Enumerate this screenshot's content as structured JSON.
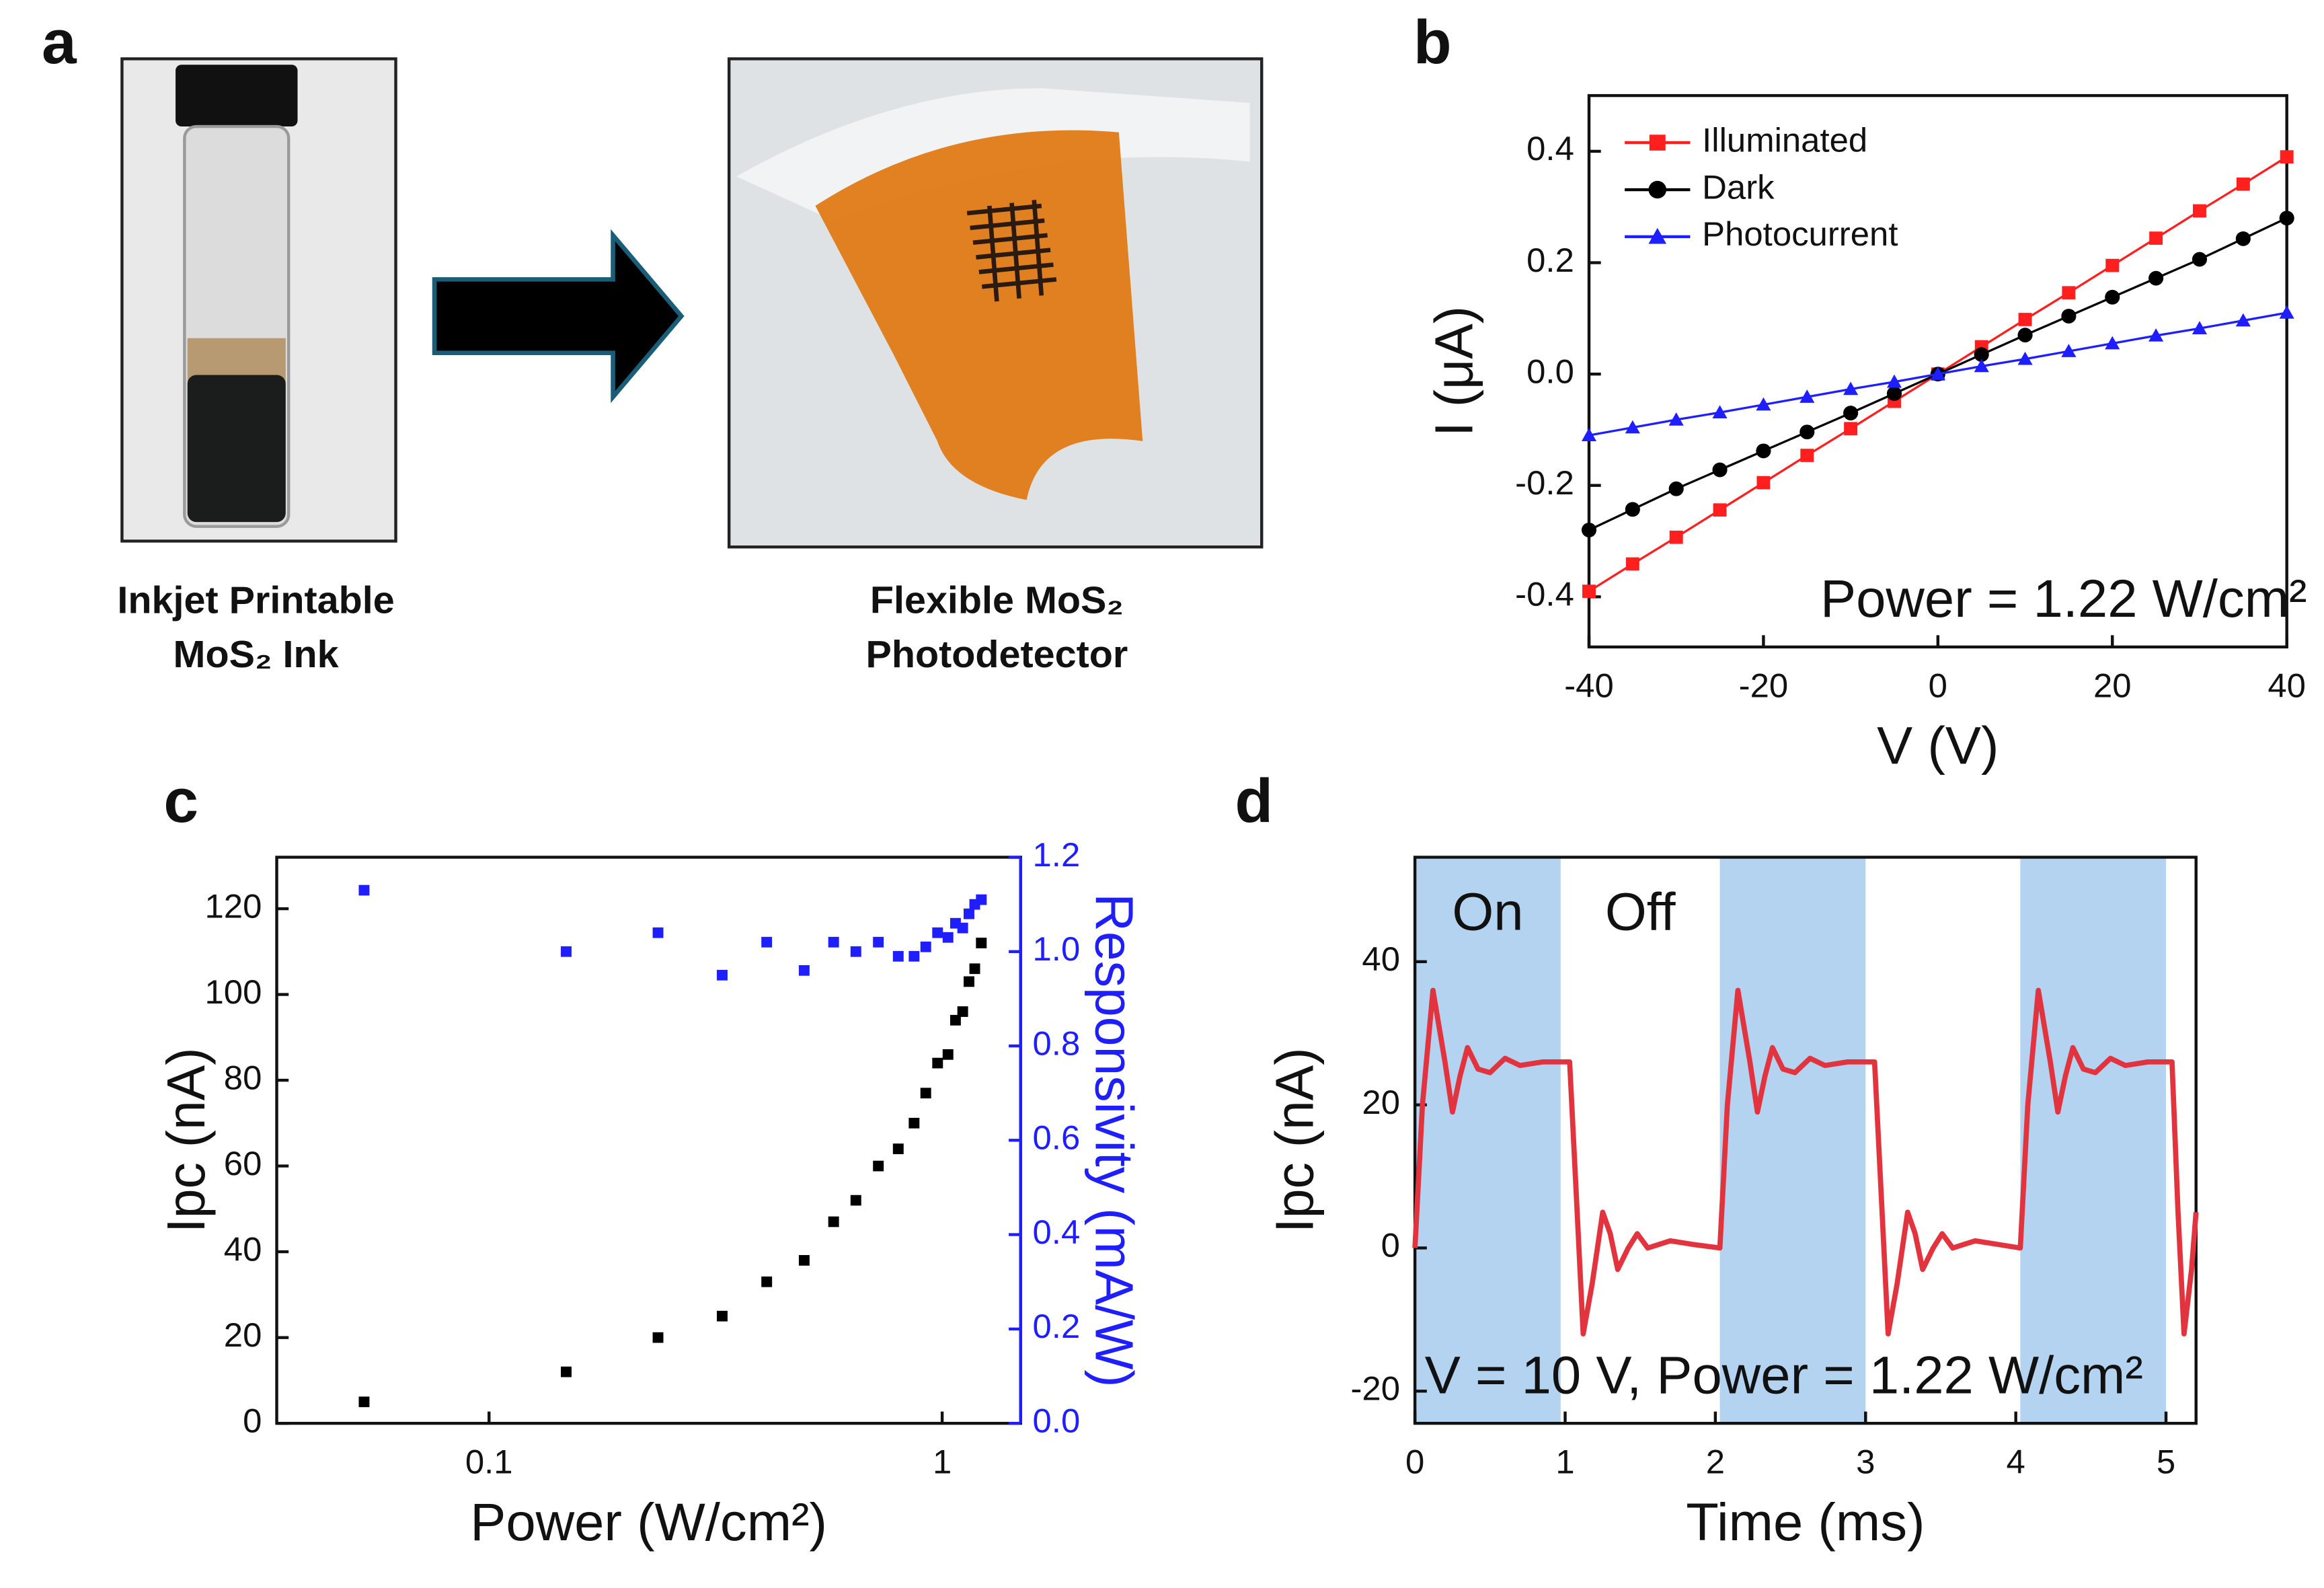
{
  "figure_a": {
    "panel_label": "a",
    "captions": [
      [
        "Inkjet Printable",
        "MoS₂ Ink"
      ],
      [
        "Flexible MoS₂",
        "Photodetector"
      ]
    ]
  },
  "chart_data": [
    {
      "type": "line",
      "panel_label": "b",
      "xlabel": "V (V)",
      "ylabel": "I (μA)",
      "annotation": "Power = 1.22 W/cm²",
      "legend": "upper left",
      "x": [
        -40,
        -35,
        -30,
        -25,
        -20,
        -15,
        -10,
        -5,
        0,
        5,
        10,
        15,
        20,
        25,
        30,
        35,
        40
      ],
      "xlim": [
        -40,
        40
      ],
      "ylim": [
        -0.49,
        0.5
      ],
      "xticks": [
        -40,
        -20,
        0,
        20,
        40
      ],
      "yticks": [
        -0.4,
        -0.2,
        {
          "value": 0,
          "label": "0.0"
        },
        0.2,
        0.4
      ],
      "series": [
        {
          "name": "Illuminated",
          "color": "#ff1f1f",
          "marker": "square",
          "values": [
            -0.39,
            -0.341,
            -0.293,
            -0.244,
            -0.195,
            -0.146,
            -0.098,
            -0.049,
            0,
            0.049,
            0.098,
            0.146,
            0.195,
            0.244,
            0.293,
            0.341,
            0.39
          ]
        },
        {
          "name": "Dark",
          "color": "#000000",
          "marker": "circle",
          "values": [
            -0.28,
            -0.243,
            -0.206,
            -0.172,
            -0.138,
            -0.104,
            -0.07,
            -0.035,
            0,
            0.035,
            0.07,
            0.104,
            0.138,
            0.172,
            0.206,
            0.243,
            0.28
          ]
        },
        {
          "name": "Photocurrent",
          "color": "#1e1eff",
          "marker": "triangle",
          "values": [
            -0.11,
            -0.096,
            -0.082,
            -0.069,
            -0.055,
            -0.041,
            -0.027,
            -0.014,
            0,
            0.014,
            0.027,
            0.041,
            0.055,
            0.069,
            0.082,
            0.096,
            0.11
          ]
        }
      ]
    },
    {
      "type": "scatter",
      "panel_label": "c",
      "xlabel": "Power (W/cm²)",
      "ylabel": "Ipc (nA)",
      "y2label": "Responsivity (mA/W)",
      "y2color": "#1e1eff",
      "xscale": "log",
      "xlim": [
        0.034,
        1.49
      ],
      "ylim": [
        0,
        132
      ],
      "y2lim": [
        0,
        1.2
      ],
      "xticks": [
        0.1,
        1
      ],
      "yticks": [
        0,
        20,
        40,
        60,
        80,
        100,
        120
      ],
      "y2ticks": [
        {
          "value": 0,
          "label": "0.0"
        },
        0.2,
        0.4,
        0.6,
        0.8,
        {
          "value": 1,
          "label": "1.0"
        },
        1.2
      ],
      "x": [
        0.053,
        0.148,
        0.236,
        0.327,
        0.41,
        0.496,
        0.576,
        0.645,
        0.723,
        0.8,
        0.867,
        0.92,
        0.977,
        1.03,
        1.07,
        1.11,
        1.146,
        1.18,
        1.22
      ],
      "series": [
        {
          "color": "#000000",
          "marker": "square",
          "values": [
            5,
            12,
            20,
            25,
            33,
            38,
            47,
            52,
            60,
            64,
            70,
            77,
            84,
            86,
            94,
            96,
            103,
            106,
            112
          ]
        },
        {
          "color": "#1e1eff",
          "marker": "square",
          "axis": "y2",
          "values": [
            1.13,
            1.0,
            1.04,
            0.95,
            1.02,
            0.96,
            1.02,
            1.0,
            1.02,
            0.99,
            0.99,
            1.01,
            1.04,
            1.03,
            1.06,
            1.05,
            1.08,
            1.1,
            1.11
          ]
        }
      ]
    },
    {
      "type": "line",
      "panel_label": "d",
      "xlabel": "Time (ms)",
      "ylabel": "Ipc (nA)",
      "annotation": "V = 10 V, Power = 1.22 W/cm²",
      "region_labels": [
        "On",
        "Off"
      ],
      "shade_color": "#b3d3f0",
      "shaded_regions": [
        [
          0,
          0.97
        ],
        [
          2.03,
          3.0
        ],
        [
          4.03,
          5.0
        ]
      ],
      "xlim": [
        0,
        5.2
      ],
      "ylim": [
        -24.5,
        54.6
      ],
      "xticks": [
        0,
        1,
        2,
        3,
        4,
        5
      ],
      "yticks": [
        -20,
        0,
        20,
        40
      ],
      "x": [
        0,
        0.05,
        0.12,
        0.2,
        0.25,
        0.3,
        0.35,
        0.42,
        0.5,
        0.6,
        0.7,
        0.85,
        1.03,
        1.08,
        1.12,
        1.18,
        1.25,
        1.3,
        1.35,
        1.42,
        1.48,
        1.55,
        1.7,
        1.85,
        2.03,
        2.08,
        2.15,
        2.23,
        2.28,
        2.33,
        2.38,
        2.45,
        2.53,
        2.63,
        2.73,
        2.88,
        3.06,
        3.11,
        3.15,
        3.21,
        3.28,
        3.33,
        3.38,
        3.45,
        3.51,
        3.58,
        3.73,
        3.88,
        4.03,
        4.08,
        4.15,
        4.23,
        4.28,
        4.33,
        4.38,
        4.45,
        4.53,
        4.63,
        4.73,
        4.88,
        5.04,
        5.08,
        5.12,
        5.17,
        5.2
      ],
      "series": [
        {
          "color": "#e2343f",
          "values": [
            0,
            20,
            36,
            26,
            19,
            24,
            28,
            25,
            24.5,
            26.5,
            25.5,
            26,
            26,
            5,
            -12,
            -5,
            5,
            2,
            -3,
            0,
            2,
            0,
            1,
            0.5,
            0,
            20,
            36,
            26,
            19,
            24,
            28,
            25,
            24.5,
            26.5,
            25.5,
            26,
            26,
            5,
            -12,
            -5,
            5,
            2,
            -3,
            0,
            2,
            0,
            1,
            0.5,
            0,
            20,
            36,
            26,
            19,
            24,
            28,
            25,
            24.5,
            26.5,
            25.5,
            26,
            26,
            5,
            -12,
            -3,
            5
          ]
        }
      ]
    }
  ]
}
